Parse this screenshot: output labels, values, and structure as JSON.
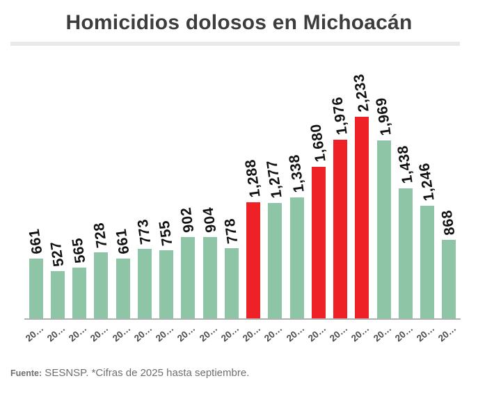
{
  "header": {
    "title": "Homicidios dolosos en Michoacán"
  },
  "footer": {
    "label": "Fuente:",
    "text": " SESNSP. *Cifras de 2025 hasta septiembre."
  },
  "palette": {
    "green": "#8ec5a6",
    "red": "#ee2127",
    "axis": "#b0b0b0",
    "divider": "#e9e9e9",
    "title_color": "#3d3d3d",
    "value_label_color": "#111111",
    "tick_color": "#4d4d4d",
    "source_color": "#6e6e6e"
  },
  "chart_data": {
    "type": "bar",
    "title": "Homicidios dolosos en Michoacán",
    "categories": [
      "20…",
      "20…",
      "20…",
      "20…",
      "20…",
      "20…",
      "20…",
      "20…",
      "20…",
      "20…",
      "20…",
      "20…",
      "20…",
      "20…",
      "20…",
      "20…",
      "20…",
      "20…",
      "20…",
      "20…"
    ],
    "values": [
      661,
      527,
      565,
      728,
      661,
      773,
      755,
      902,
      904,
      778,
      1288,
      1277,
      1338,
      1680,
      1976,
      2233,
      1969,
      1438,
      1246,
      868
    ],
    "value_labels": [
      "661",
      "527",
      "565",
      "728",
      "661",
      "773",
      "755",
      "902",
      "904",
      "778",
      "1,288",
      "1,277",
      "1,338",
      "1,680",
      "1,976",
      "2,233",
      "1,969",
      "1,438",
      "1,246",
      "868"
    ],
    "bar_colors": [
      "green",
      "green",
      "green",
      "green",
      "green",
      "green",
      "green",
      "green",
      "green",
      "green",
      "red",
      "green",
      "green",
      "red",
      "red",
      "red",
      "green",
      "green",
      "green",
      "green"
    ],
    "xlabel": "",
    "ylabel": "",
    "ylim": [
      0,
      2233
    ],
    "grid": "off",
    "legend": "none",
    "bar_label_orientation": "vertical",
    "x_tick_orientation": "diagonal",
    "source_note": "Fuente: SESNSP. *Cifras de 2025 hasta septiembre."
  }
}
